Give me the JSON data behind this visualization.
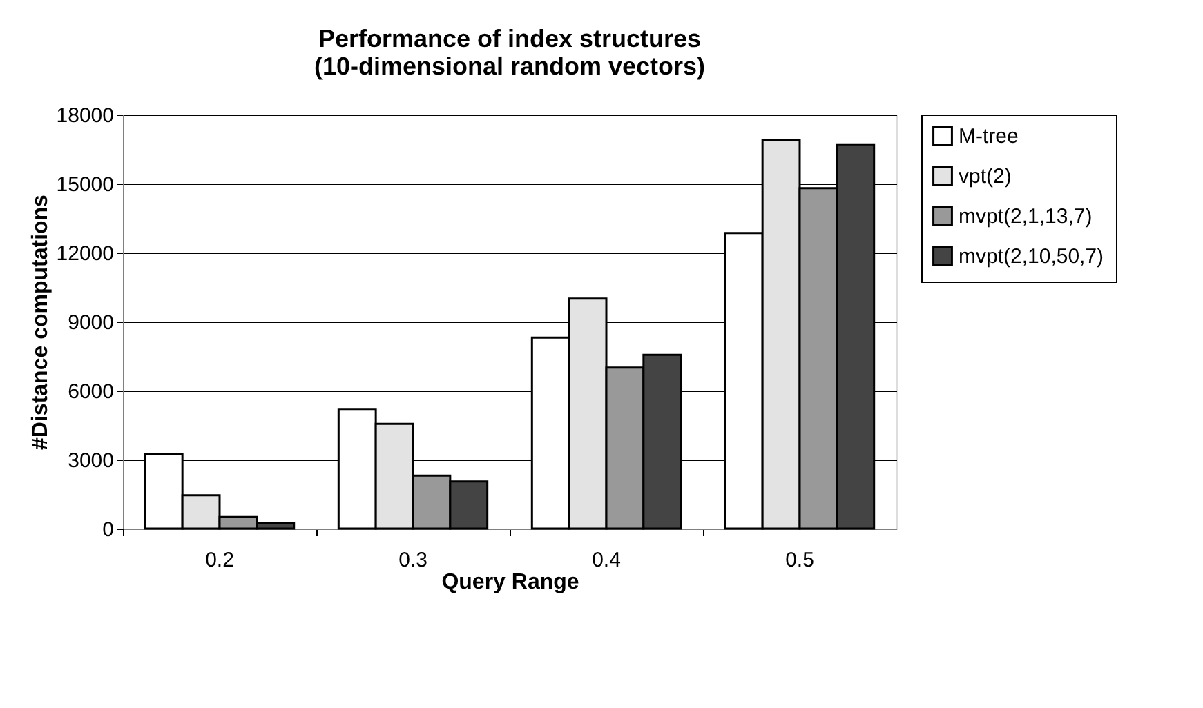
{
  "chart_data": {
    "type": "bar",
    "title": [
      "Performance of index structures",
      "(10-dimensional random vectors)"
    ],
    "xlabel": "Query Range",
    "ylabel": "#Distance computations",
    "categories": [
      "0.2",
      "0.3",
      "0.4",
      "0.5"
    ],
    "series": [
      {
        "name": "M-tree",
        "color": "#ffffff",
        "values": [
          3250,
          5200,
          8300,
          12850
        ]
      },
      {
        "name": "vpt(2)",
        "color": "#e3e3e3",
        "values": [
          1450,
          4550,
          10000,
          16900
        ]
      },
      {
        "name": "mvpt(2,1,13,7)",
        "color": "#999999",
        "values": [
          500,
          2300,
          7000,
          14800
        ]
      },
      {
        "name": "mvpt(2,10,50,7)",
        "color": "#444444",
        "values": [
          250,
          2050,
          7550,
          16700
        ]
      }
    ],
    "ylim": [
      0,
      18000
    ],
    "yticks": [
      0,
      3000,
      6000,
      9000,
      12000,
      15000,
      18000
    ],
    "grid": "y",
    "legend": "right"
  }
}
